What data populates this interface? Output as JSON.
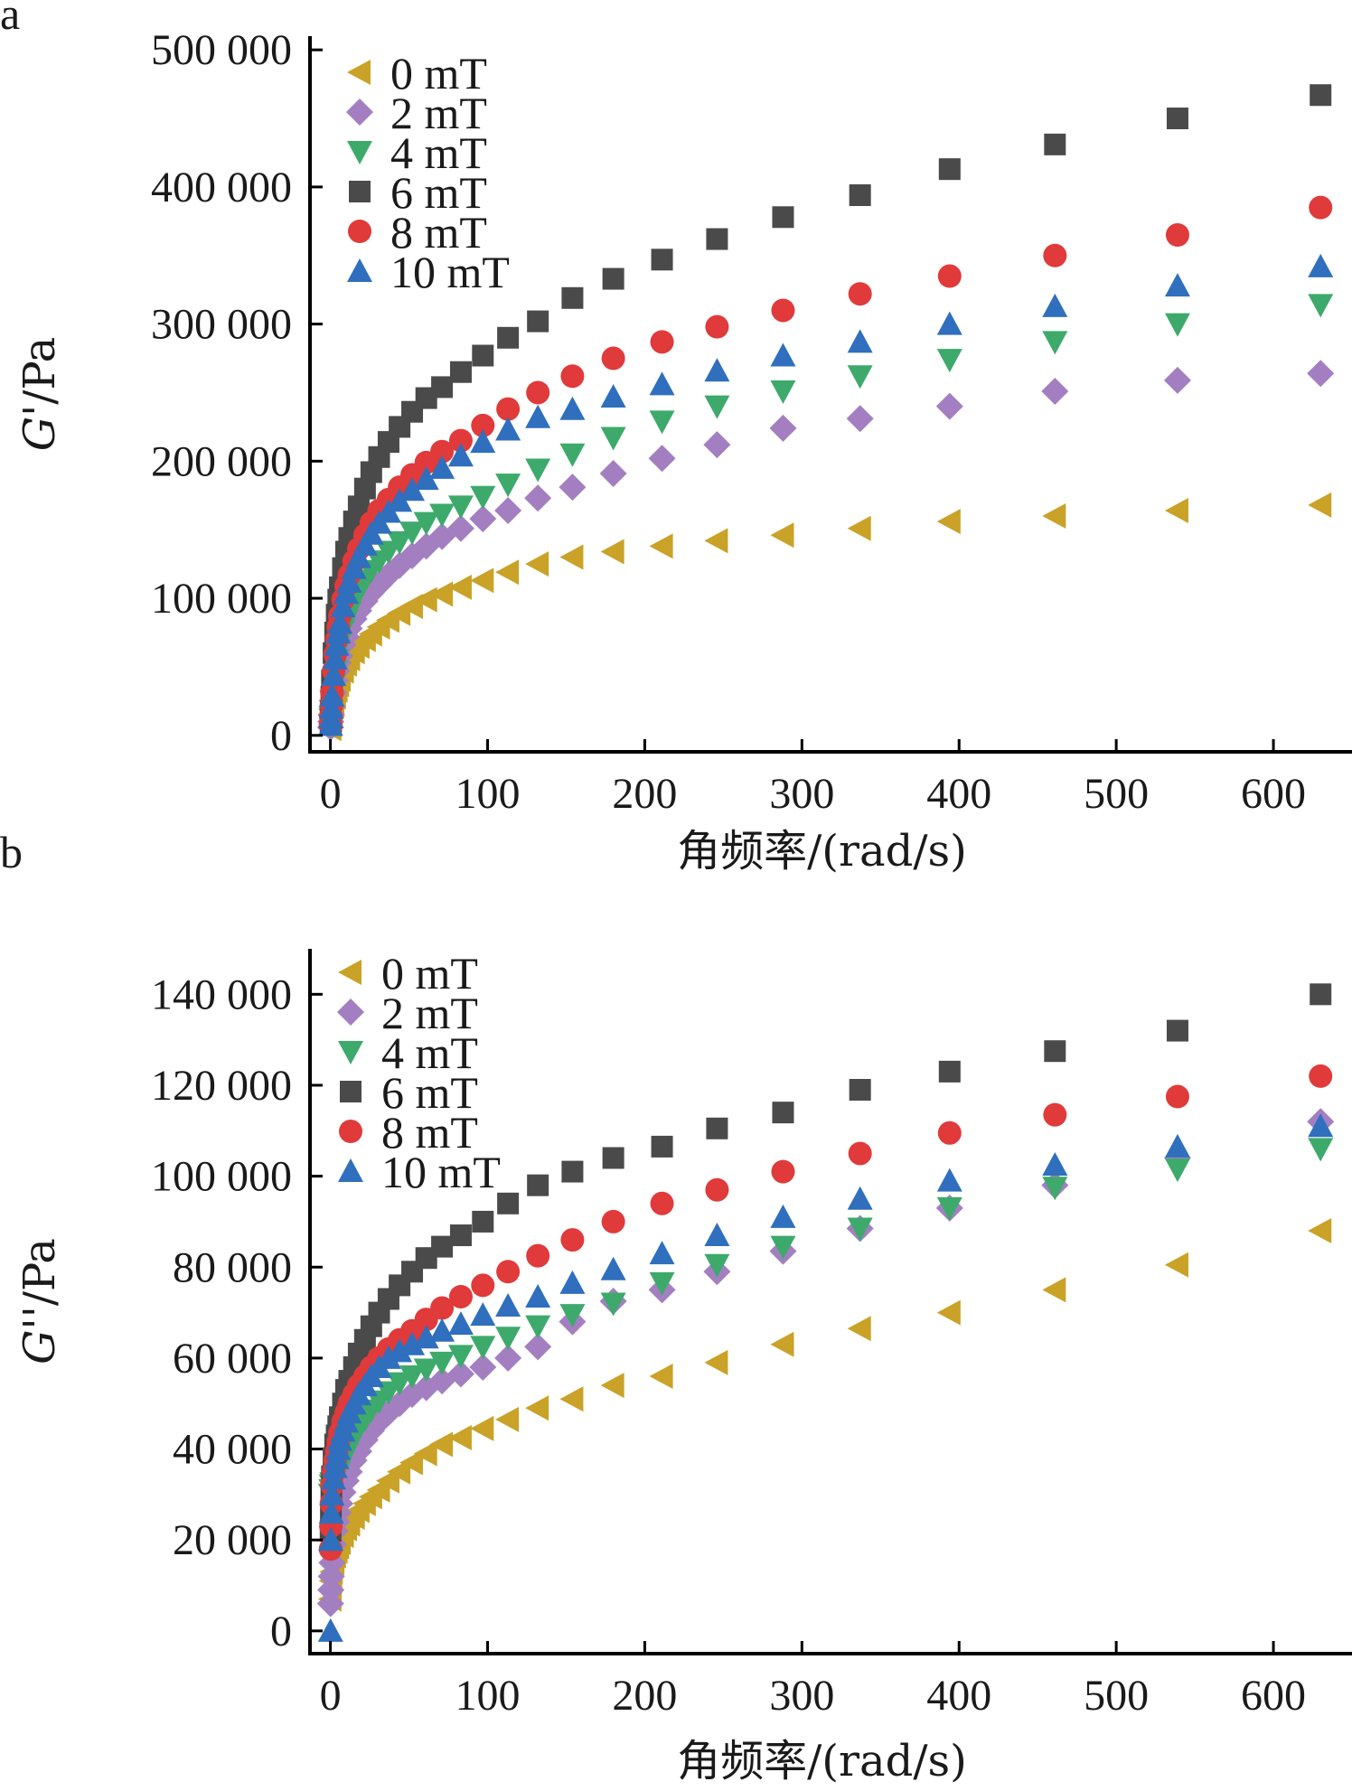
{
  "chart_data": [
    {
      "panel": "a",
      "type": "scatter",
      "xlabel": "角频率/(rad/s)",
      "ylabel_italic": "G",
      "ylabel_rest": "'/Pa",
      "xlim": [
        -13,
        650
      ],
      "ylim": [
        -12000,
        510000
      ],
      "xticks": [
        0,
        100,
        200,
        300,
        400,
        500,
        600
      ],
      "yticks": [
        0,
        100000,
        200000,
        300000,
        400000,
        500000
      ],
      "ytick_labels": [
        "0",
        "100 000",
        "200 000",
        "300 000",
        "400 000",
        "500 000"
      ],
      "x": [
        0.1,
        0.3,
        0.6,
        1,
        2,
        3,
        4,
        5,
        6,
        8,
        10,
        12,
        15,
        18,
        22,
        26,
        31,
        37,
        44,
        52,
        61,
        71,
        83,
        97,
        113,
        132,
        154,
        180,
        211,
        246,
        288,
        337,
        394,
        461,
        539,
        630
      ],
      "series": [
        {
          "name": "0 mT",
          "marker": "tri-left",
          "color": "#c9a227",
          "values": [
            5000,
            8000,
            11000,
            15000,
            22000,
            28000,
            33000,
            37000,
            41000,
            47000,
            52000,
            56000,
            61000,
            65000,
            70000,
            74000,
            79000,
            84000,
            89000,
            94000,
            99000,
            103000,
            108000,
            113000,
            119000,
            125000,
            130000,
            134000,
            138000,
            142000,
            146000,
            151000,
            156000,
            160000,
            164000,
            168000
          ]
        },
        {
          "name": "2 mT",
          "marker": "diamond",
          "color": "#a37fc1",
          "values": [
            6000,
            10000,
            15000,
            21000,
            31000,
            40000,
            47000,
            53000,
            58000,
            66000,
            72000,
            78000,
            85000,
            91000,
            98000,
            104000,
            110000,
            117000,
            124000,
            131000,
            138000,
            145000,
            151000,
            158000,
            164000,
            173000,
            181000,
            191000,
            202000,
            212000,
            224000,
            231000,
            240000,
            251000,
            259000,
            264000
          ]
        },
        {
          "name": "4 mT",
          "marker": "tri-down",
          "color": "#3daa6b",
          "values": [
            7000,
            12000,
            18000,
            25000,
            37000,
            47000,
            55000,
            62000,
            68000,
            77000,
            84000,
            90000,
            98000,
            105000,
            113000,
            120000,
            127000,
            134000,
            141000,
            148000,
            155000,
            161000,
            167000,
            174000,
            183000,
            194000,
            205000,
            217000,
            229000,
            240000,
            251000,
            262000,
            274000,
            287000,
            300000,
            314000
          ]
        },
        {
          "name": "6 mT",
          "marker": "square",
          "color": "#4a4a4a",
          "values": [
            10000,
            18000,
            28000,
            40000,
            60000,
            75000,
            88000,
            99000,
            108000,
            122000,
            134000,
            144000,
            156000,
            167000,
            180000,
            192000,
            203000,
            214000,
            225000,
            236000,
            246000,
            254000,
            265000,
            277000,
            290000,
            302000,
            319000,
            333000,
            347000,
            362000,
            378000,
            394000,
            413000,
            431000,
            450000,
            467000
          ]
        },
        {
          "name": "8 mT",
          "marker": "circle",
          "color": "#e03a3a",
          "values": [
            8000,
            14000,
            22000,
            31000,
            47000,
            59000,
            70000,
            79000,
            87000,
            99000,
            109000,
            117000,
            127000,
            136000,
            146000,
            155000,
            164000,
            172000,
            181000,
            190000,
            199000,
            207000,
            215000,
            226000,
            238000,
            250000,
            262000,
            275000,
            287000,
            298000,
            310000,
            322000,
            335000,
            350000,
            365000,
            385000
          ]
        },
        {
          "name": "10 mT",
          "marker": "tri-up",
          "color": "#2f6fbe",
          "values": [
            7500,
            13000,
            20000,
            29000,
            44000,
            56000,
            66000,
            75000,
            82000,
            94000,
            104000,
            112000,
            122000,
            130000,
            139000,
            147000,
            155000,
            163000,
            171000,
            179000,
            187000,
            195000,
            204000,
            214000,
            223000,
            232000,
            238000,
            247000,
            256000,
            266000,
            277000,
            287000,
            300000,
            313000,
            328000,
            342000
          ]
        }
      ]
    },
    {
      "panel": "b",
      "type": "scatter",
      "xlabel": "角频率/(rad/s)",
      "ylabel_italic": "G",
      "ylabel_rest": "''/Pa",
      "xlim": [
        -13,
        650
      ],
      "ylim": [
        -5000,
        150000
      ],
      "xticks": [
        0,
        100,
        200,
        300,
        400,
        500,
        600
      ],
      "yticks": [
        0,
        20000,
        40000,
        60000,
        80000,
        100000,
        120000,
        140000
      ],
      "ytick_labels": [
        "0",
        "20 000",
        "40 000",
        "60 000",
        "80 000",
        "100 000",
        "120 000",
        "140 000"
      ],
      "x": [
        0.1,
        0.3,
        0.6,
        1,
        2,
        3,
        4,
        5,
        6,
        8,
        10,
        12,
        15,
        18,
        22,
        26,
        31,
        37,
        44,
        52,
        61,
        71,
        83,
        97,
        113,
        132,
        154,
        180,
        211,
        246,
        288,
        337,
        394,
        461,
        539,
        630
      ],
      "series": [
        {
          "name": "0 mT",
          "marker": "tri-left",
          "color": "#c9a227",
          "values": [
            7000,
            9000,
            11000,
            13000,
            15000,
            16500,
            17500,
            18500,
            19500,
            21000,
            22500,
            23500,
            25000,
            26500,
            28000,
            29500,
            31000,
            33000,
            35000,
            37000,
            39000,
            41000,
            42500,
            44500,
            46500,
            49000,
            51000,
            54000,
            56000,
            59000,
            63000,
            66500,
            70000,
            75000,
            80500,
            88000
          ]
        },
        {
          "name": "2 mT",
          "marker": "diamond",
          "color": "#a37fc1",
          "values": [
            6000,
            9000,
            12000,
            15000,
            19000,
            22000,
            24000,
            26000,
            28000,
            30500,
            33000,
            35000,
            37500,
            39500,
            42000,
            44000,
            46000,
            48000,
            50000,
            52000,
            53500,
            55000,
            56500,
            58000,
            60000,
            62500,
            68000,
            72500,
            75000,
            79000,
            83500,
            88500,
            93000,
            98000,
            104000,
            112000
          ]
        },
        {
          "name": "4 mT",
          "marker": "tri-down",
          "color": "#3daa6b",
          "values": [
            30000,
            31000,
            32000,
            32500,
            33000,
            33500,
            34000,
            35000,
            36000,
            37500,
            39000,
            40500,
            42500,
            44500,
            46500,
            48500,
            50500,
            52500,
            54500,
            56000,
            57500,
            59000,
            60500,
            62500,
            64500,
            67000,
            69500,
            72000,
            76500,
            80500,
            84500,
            88500,
            93000,
            97500,
            101500,
            106000
          ]
        },
        {
          "name": "6 mT",
          "marker": "square",
          "color": "#4a4a4a",
          "values": [
            22000,
            26000,
            30000,
            34000,
            38000,
            41000,
            43000,
            45000,
            47000,
            50000,
            53000,
            55000,
            58000,
            61000,
            64000,
            67000,
            70000,
            73000,
            76000,
            79000,
            82000,
            84500,
            87000,
            90000,
            94000,
            98000,
            101000,
            104000,
            106500,
            110500,
            114000,
            119000,
            123000,
            127500,
            132000,
            140000
          ]
        },
        {
          "name": "8 mT",
          "marker": "circle",
          "color": "#e03a3a",
          "values": [
            18000,
            23000,
            28000,
            32000,
            35000,
            37500,
            39500,
            41500,
            43500,
            46000,
            48000,
            50000,
            52000,
            54000,
            56000,
            58000,
            60000,
            62000,
            64000,
            66000,
            68500,
            71000,
            73500,
            76000,
            79000,
            82500,
            86000,
            90000,
            94000,
            97000,
            101000,
            105000,
            109500,
            113500,
            117500,
            122000
          ]
        },
        {
          "name": "10 mT",
          "marker": "tri-up",
          "color": "#2f6fbe",
          "values": [
            0,
            20000,
            26000,
            30000,
            33500,
            36000,
            38000,
            40000,
            42000,
            44000,
            46000,
            48000,
            50000,
            52000,
            54000,
            56000,
            58000,
            60000,
            61500,
            63000,
            64500,
            66000,
            67500,
            69500,
            71500,
            73500,
            76500,
            79500,
            83000,
            87000,
            91000,
            95000,
            99000,
            102500,
            106500,
            111000
          ]
        }
      ]
    }
  ]
}
